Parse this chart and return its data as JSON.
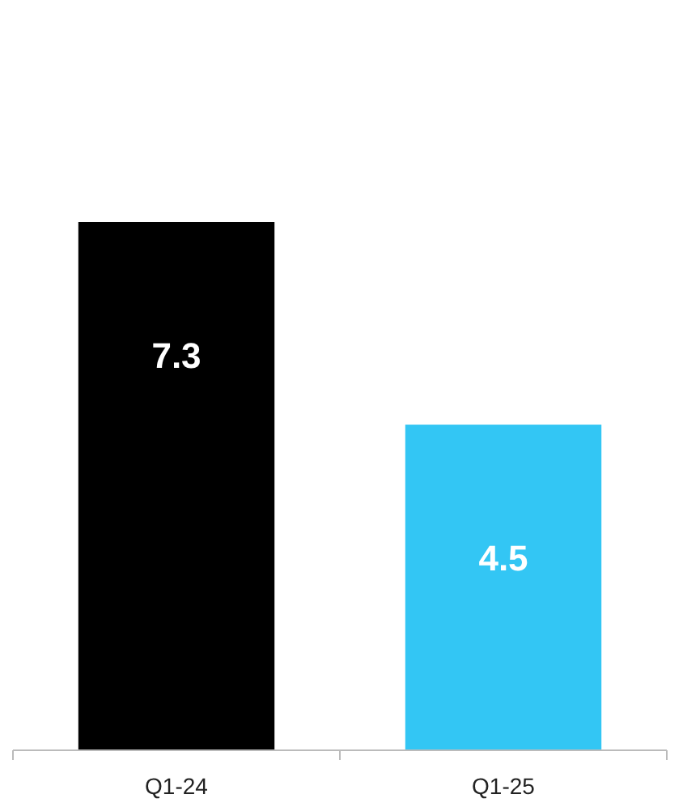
{
  "chart_data": {
    "type": "bar",
    "categories": [
      "Q1-24",
      "Q1-25"
    ],
    "values": [
      7.3,
      4.5
    ],
    "colors": [
      "#000000",
      "#33c6f4"
    ],
    "data_labels": true
  }
}
